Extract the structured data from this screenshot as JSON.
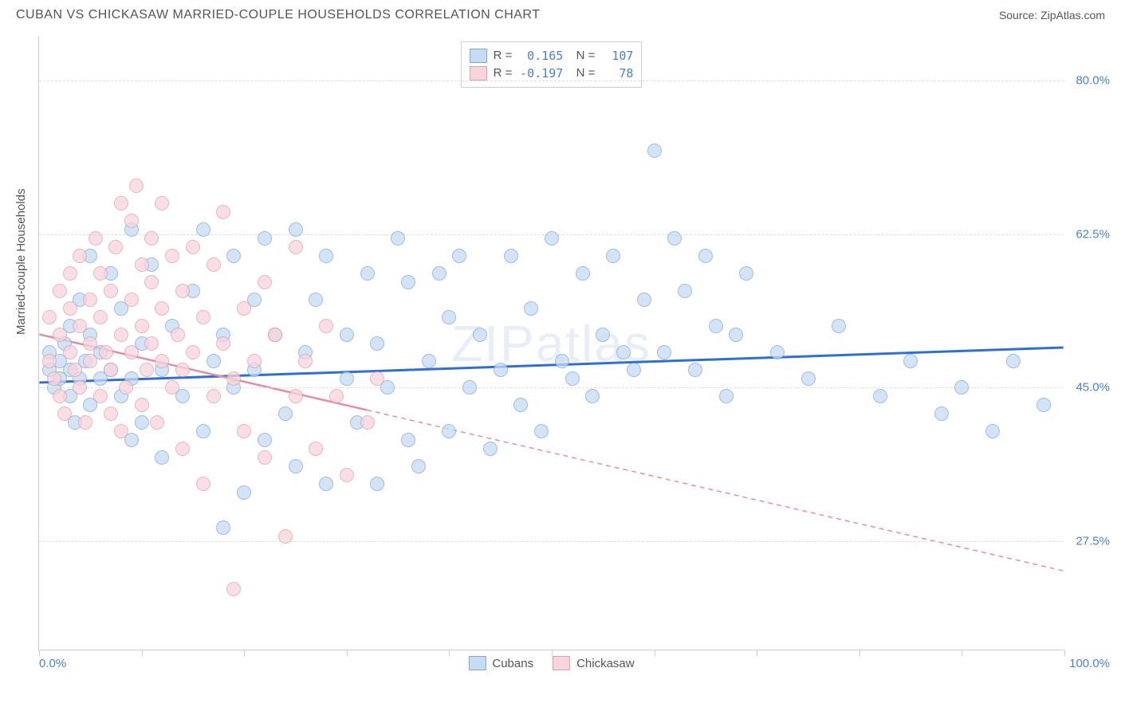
{
  "title": "CUBAN VS CHICKASAW MARRIED-COUPLE HOUSEHOLDS CORRELATION CHART",
  "source": "Source: ZipAtlas.com",
  "watermark": "ZIPatlas",
  "chart": {
    "type": "scatter",
    "x_axis": {
      "min": 0,
      "max": 100,
      "min_label": "0.0%",
      "max_label": "100.0%",
      "tick_positions": [
        0,
        10,
        20,
        30,
        40,
        50,
        60,
        70,
        80,
        90,
        100
      ]
    },
    "y_axis": {
      "label": "Married-couple Households",
      "min": 15,
      "max": 85,
      "ticks": [
        {
          "value": 27.5,
          "label": "27.5%"
        },
        {
          "value": 45.0,
          "label": "45.0%"
        },
        {
          "value": 62.5,
          "label": "62.5%"
        },
        {
          "value": 80.0,
          "label": "80.0%"
        }
      ]
    },
    "series": [
      {
        "name": "Cubans",
        "color_fill": "#c6dcf5",
        "color_stroke": "#7fa8d9",
        "marker_radius": 9,
        "marker_stroke_width": 1.5,
        "trend": {
          "color": "#2f6fd0",
          "width": 3,
          "y_at_x0": 45.5,
          "y_at_x100": 49.5,
          "solid_until_x": 100,
          "dash": "none"
        },
        "r_value": "0.165",
        "n_value": "107",
        "points": [
          [
            1,
            47
          ],
          [
            1,
            49
          ],
          [
            1.5,
            45
          ],
          [
            2,
            46
          ],
          [
            2,
            48
          ],
          [
            2.5,
            50
          ],
          [
            3,
            44
          ],
          [
            3,
            47
          ],
          [
            3,
            52
          ],
          [
            3.5,
            41
          ],
          [
            4,
            46
          ],
          [
            4,
            55
          ],
          [
            4.5,
            48
          ],
          [
            5,
            43
          ],
          [
            5,
            51
          ],
          [
            5,
            60
          ],
          [
            6,
            46
          ],
          [
            6,
            49
          ],
          [
            7,
            47
          ],
          [
            7,
            58
          ],
          [
            8,
            44
          ],
          [
            8,
            54
          ],
          [
            9,
            46
          ],
          [
            9,
            63
          ],
          [
            10,
            41
          ],
          [
            10,
            50
          ],
          [
            11,
            59
          ],
          [
            12,
            47
          ],
          [
            13,
            52
          ],
          [
            14,
            44
          ],
          [
            15,
            56
          ],
          [
            16,
            40
          ],
          [
            16,
            63
          ],
          [
            17,
            48
          ],
          [
            18,
            29
          ],
          [
            18,
            51
          ],
          [
            19,
            45
          ],
          [
            19,
            60
          ],
          [
            20,
            33
          ],
          [
            21,
            47
          ],
          [
            21,
            55
          ],
          [
            22,
            39
          ],
          [
            22,
            62
          ],
          [
            23,
            51
          ],
          [
            24,
            42
          ],
          [
            25,
            36
          ],
          [
            25,
            63
          ],
          [
            26,
            49
          ],
          [
            27,
            55
          ],
          [
            28,
            34
          ],
          [
            28,
            60
          ],
          [
            30,
            46
          ],
          [
            30,
            51
          ],
          [
            31,
            41
          ],
          [
            32,
            58
          ],
          [
            33,
            34
          ],
          [
            33,
            50
          ],
          [
            34,
            45
          ],
          [
            35,
            62
          ],
          [
            36,
            39
          ],
          [
            36,
            57
          ],
          [
            37,
            36
          ],
          [
            38,
            48
          ],
          [
            39,
            58
          ],
          [
            40,
            40
          ],
          [
            40,
            53
          ],
          [
            41,
            60
          ],
          [
            42,
            45
          ],
          [
            43,
            51
          ],
          [
            44,
            38
          ],
          [
            45,
            47
          ],
          [
            46,
            60
          ],
          [
            47,
            43
          ],
          [
            48,
            54
          ],
          [
            49,
            40
          ],
          [
            50,
            62
          ],
          [
            51,
            48
          ],
          [
            52,
            46
          ],
          [
            53,
            58
          ],
          [
            54,
            44
          ],
          [
            55,
            51
          ],
          [
            56,
            60
          ],
          [
            57,
            49
          ],
          [
            58,
            47
          ],
          [
            59,
            55
          ],
          [
            60,
            72
          ],
          [
            61,
            49
          ],
          [
            62,
            62
          ],
          [
            63,
            56
          ],
          [
            64,
            47
          ],
          [
            65,
            60
          ],
          [
            66,
            52
          ],
          [
            67,
            44
          ],
          [
            68,
            51
          ],
          [
            69,
            58
          ],
          [
            72,
            49
          ],
          [
            75,
            46
          ],
          [
            78,
            52
          ],
          [
            82,
            44
          ],
          [
            85,
            48
          ],
          [
            88,
            42
          ],
          [
            90,
            45
          ],
          [
            93,
            40
          ],
          [
            95,
            48
          ],
          [
            98,
            43
          ],
          [
            9,
            39
          ],
          [
            12,
            37
          ]
        ]
      },
      {
        "name": "Chickasaw",
        "color_fill": "#f7d5dd",
        "color_stroke": "#e09fad",
        "marker_radius": 9,
        "marker_stroke_width": 1.5,
        "trend": {
          "color": "#e38fa0",
          "width": 2.5,
          "y_at_x0": 51.0,
          "y_at_x100": 24.0,
          "solid_until_x": 32,
          "dash": "6,5"
        },
        "r_value": "-0.197",
        "n_value": "78",
        "points": [
          [
            1,
            48
          ],
          [
            1,
            53
          ],
          [
            1.5,
            46
          ],
          [
            2,
            44
          ],
          [
            2,
            51
          ],
          [
            2,
            56
          ],
          [
            2.5,
            42
          ],
          [
            3,
            49
          ],
          [
            3,
            58
          ],
          [
            3,
            54
          ],
          [
            3.5,
            47
          ],
          [
            4,
            45
          ],
          [
            4,
            52
          ],
          [
            4,
            60
          ],
          [
            4.5,
            41
          ],
          [
            5,
            50
          ],
          [
            5,
            48
          ],
          [
            5,
            55
          ],
          [
            5.5,
            62
          ],
          [
            6,
            44
          ],
          [
            6,
            53
          ],
          [
            6,
            58
          ],
          [
            6.5,
            49
          ],
          [
            7,
            42
          ],
          [
            7,
            47
          ],
          [
            7,
            56
          ],
          [
            7.5,
            61
          ],
          [
            8,
            40
          ],
          [
            8,
            51
          ],
          [
            8,
            66
          ],
          [
            8.5,
            45
          ],
          [
            9,
            49
          ],
          [
            9,
            55
          ],
          [
            9,
            64
          ],
          [
            9.5,
            68
          ],
          [
            10,
            43
          ],
          [
            10,
            52
          ],
          [
            10,
            59
          ],
          [
            10.5,
            47
          ],
          [
            11,
            50
          ],
          [
            11,
            57
          ],
          [
            11,
            62
          ],
          [
            11.5,
            41
          ],
          [
            12,
            48
          ],
          [
            12,
            54
          ],
          [
            12,
            66
          ],
          [
            13,
            45
          ],
          [
            13,
            60
          ],
          [
            13.5,
            51
          ],
          [
            14,
            38
          ],
          [
            14,
            47
          ],
          [
            14,
            56
          ],
          [
            15,
            49
          ],
          [
            15,
            61
          ],
          [
            16,
            34
          ],
          [
            16,
            53
          ],
          [
            17,
            44
          ],
          [
            17,
            59
          ],
          [
            18,
            50
          ],
          [
            18,
            65
          ],
          [
            19,
            46
          ],
          [
            20,
            40
          ],
          [
            20,
            54
          ],
          [
            21,
            48
          ],
          [
            22,
            37
          ],
          [
            22,
            57
          ],
          [
            23,
            51
          ],
          [
            24,
            28
          ],
          [
            25,
            44
          ],
          [
            25,
            61
          ],
          [
            26,
            48
          ],
          [
            27,
            38
          ],
          [
            28,
            52
          ],
          [
            29,
            44
          ],
          [
            30,
            35
          ],
          [
            32,
            41
          ],
          [
            19,
            22
          ],
          [
            33,
            46
          ]
        ]
      }
    ],
    "background_color": "#ffffff",
    "grid_color": "#dddddd",
    "axis_color": "#cccccc",
    "text_color": "#555555",
    "accent_color": "#4a7fd6"
  },
  "legend_bottom": [
    {
      "label": "Cubans",
      "fill": "#c6dcf5",
      "stroke": "#7fa8d9"
    },
    {
      "label": "Chickasaw",
      "fill": "#f7d5dd",
      "stroke": "#e09fad"
    }
  ]
}
